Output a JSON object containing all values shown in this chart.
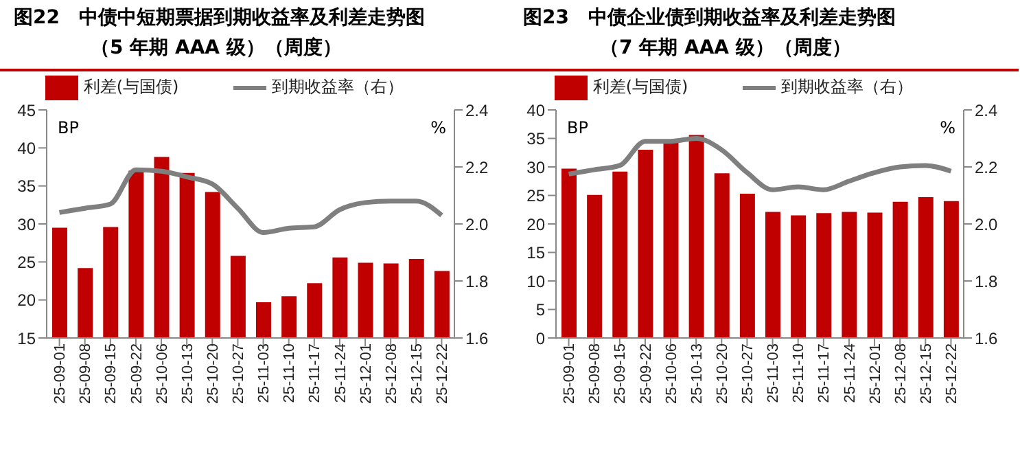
{
  "chart_data": [
    {
      "type": "bar",
      "title": "图22　中债中短期票据到期收益率及利差走势图",
      "subtitle": "（5 年期 AAA 级）（周度）",
      "ylabel": "BP",
      "y2label": "%",
      "categories": [
        "25-09-01",
        "25-09-08",
        "25-09-15",
        "25-09-22",
        "25-10-06",
        "25-10-13",
        "25-10-20",
        "25-10-27",
        "25-11-03",
        "25-11-10",
        "25-11-17",
        "25-11-24",
        "25-12-01",
        "25-12-08",
        "25-12-15",
        "25-12-22"
      ],
      "series": [
        {
          "name": "利差(与国债)",
          "color": "#c00000",
          "values": [
            29.5,
            24.2,
            29.6,
            37.0,
            38.8,
            36.7,
            34.2,
            25.8,
            19.7,
            20.5,
            22.2,
            25.6,
            24.9,
            24.8,
            25.4,
            23.8
          ]
        },
        {
          "name": "到期收益率（右）",
          "type": "line",
          "axis": "y2",
          "color": "#7f7f7f",
          "values": [
            2.04,
            2.055,
            2.07,
            2.19,
            2.185,
            2.165,
            2.14,
            2.055,
            1.97,
            1.985,
            1.99,
            2.05,
            2.075,
            2.08,
            2.08,
            2.03
          ]
        }
      ],
      "ylim": [
        15,
        45
      ],
      "yticks": [
        15,
        20,
        25,
        30,
        35,
        40,
        45
      ],
      "y2lim": [
        1.6,
        2.4
      ],
      "y2ticks": [
        {
          "value": 1.6,
          "label": "1.6"
        },
        {
          "value": 1.8,
          "label": "1.8"
        },
        {
          "value": 2,
          "label": "2.0"
        },
        {
          "value": 2.2,
          "label": "2.2"
        },
        {
          "value": 2.4,
          "label": "2.4"
        }
      ],
      "grid": false,
      "legend": "top",
      "marker": "none",
      "line_style": "solid"
    },
    {
      "type": "bar",
      "title": "图23　中债企业债到期收益率及利差走势图",
      "subtitle": "（7 年期 AAA 级）（周度）",
      "ylabel": "BP",
      "y2label": "%",
      "categories": [
        "25-09-01",
        "25-09-08",
        "25-09-15",
        "25-09-22",
        "25-10-06",
        "25-10-13",
        "25-10-20",
        "25-10-27",
        "25-11-03",
        "25-11-10",
        "25-11-17",
        "25-11-24",
        "25-12-01",
        "25-12-08",
        "25-12-15",
        "25-12-22"
      ],
      "series": [
        {
          "name": "利差(与国债)",
          "color": "#c00000",
          "values": [
            29.7,
            25.1,
            29.2,
            33.0,
            34.8,
            35.6,
            28.9,
            25.3,
            22.1,
            21.5,
            21.9,
            22.1,
            22.0,
            23.9,
            24.7,
            24.0
          ]
        },
        {
          "name": "到期收益率（右）",
          "type": "line",
          "axis": "y2",
          "color": "#7f7f7f",
          "values": [
            2.175,
            2.19,
            2.205,
            2.29,
            2.29,
            2.3,
            2.26,
            2.18,
            2.12,
            2.13,
            2.12,
            2.15,
            2.18,
            2.2,
            2.205,
            2.185
          ]
        }
      ],
      "ylim": [
        0,
        40
      ],
      "yticks": [
        0,
        5,
        10,
        15,
        20,
        25,
        30,
        35,
        40
      ],
      "y2lim": [
        1.6,
        2.4
      ],
      "y2ticks": [
        {
          "value": 1.6,
          "label": "1.6"
        },
        {
          "value": 1.8,
          "label": "1.8"
        },
        {
          "value": 2,
          "label": "2.0"
        },
        {
          "value": 2.2,
          "label": "2.2"
        },
        {
          "value": 2.4,
          "label": "2.4"
        }
      ],
      "grid": false,
      "legend": "top",
      "marker": "none",
      "line_style": "solid"
    }
  ]
}
